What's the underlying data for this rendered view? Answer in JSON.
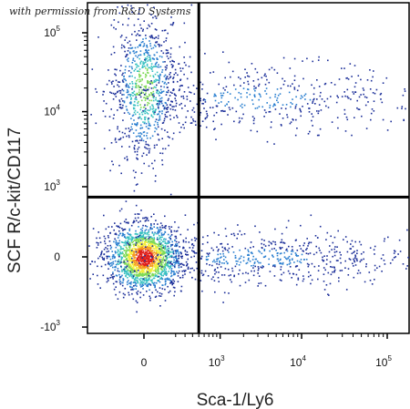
{
  "watermark": "with permission from R&D Systems",
  "chart_data": {
    "type": "scatter",
    "style": "flow-cytometry density plot",
    "xlabel": "Sca-1/Ly6",
    "ylabel": "SCF R/c-kit/CD117",
    "x_scale": "biexponential",
    "y_scale": "biexponential",
    "x_tick_labels": [
      {
        "value": 0,
        "base": "0",
        "exp": ""
      },
      {
        "value": 1000,
        "base": "10",
        "exp": "3"
      },
      {
        "value": 10000,
        "base": "10",
        "exp": "4"
      },
      {
        "value": 100000,
        "base": "10",
        "exp": "5"
      }
    ],
    "y_tick_labels": [
      {
        "value": -1000,
        "base": "-10",
        "exp": "3"
      },
      {
        "value": 0,
        "base": "0",
        "exp": ""
      },
      {
        "value": 1000,
        "base": "10",
        "exp": "3"
      },
      {
        "value": 10000,
        "base": "10",
        "exp": "4"
      },
      {
        "value": 100000,
        "base": "10",
        "exp": "5"
      }
    ],
    "gates": {
      "x": 500,
      "y": 700
    },
    "density_colors": [
      "#1c2f99",
      "#2a7fd0",
      "#36c0c0",
      "#7ed957",
      "#f2ee3a",
      "#f59a1f",
      "#e0201b"
    ],
    "populations": [
      {
        "cx": 0,
        "cy": 0,
        "spread_x": 0.6,
        "spread_y": 0.55,
        "weight": 0.46
      },
      {
        "cx": 0,
        "cy": 20000,
        "spread_x": 0.55,
        "spread_y": 0.5,
        "weight": 0.22
      },
      {
        "cx": 3000,
        "cy": 0,
        "spread_x": 1.1,
        "spread_y": 0.45,
        "weight": 0.18
      },
      {
        "cx": 3000,
        "cy": 15000,
        "spread_x": 1.1,
        "spread_y": 0.55,
        "weight": 0.14
      }
    ]
  }
}
